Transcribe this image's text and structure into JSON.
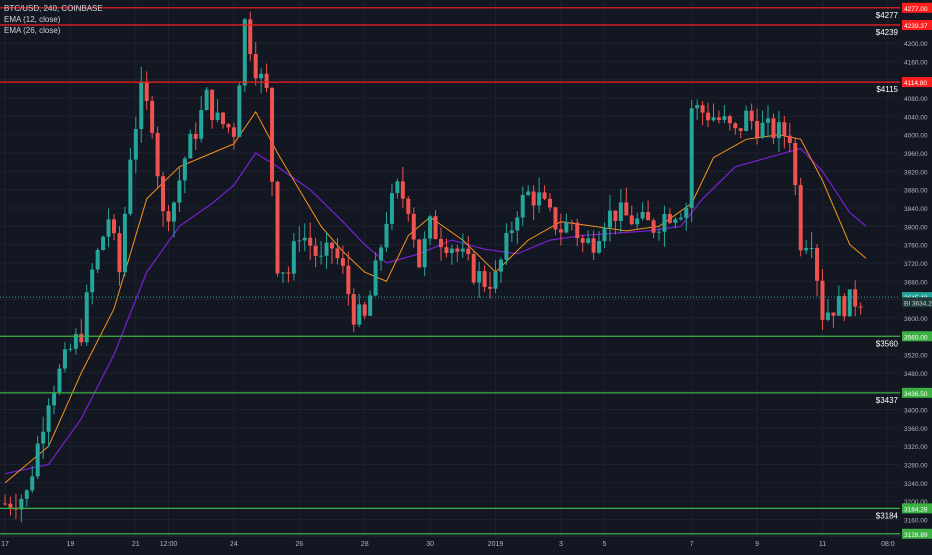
{
  "header": {
    "symbol_line": "BTC/USD, 240, COINBASE",
    "indicator_1": "EMA (12, close)",
    "indicator_2": "EMA (26, close)"
  },
  "colors": {
    "background": "#131722",
    "grid": "#1e2230",
    "up": "#26a69a",
    "down": "#ef5350",
    "ema_fast": "#f7931a",
    "ema_slow": "#7b1fd2",
    "resistance": "#ff1e1e",
    "support": "#3cb043",
    "axis_text": "#b2b5be",
    "price_label_bg": "#26a69a"
  },
  "chart_data": {
    "type": "candlestick",
    "title": "BTC/USD, 240, COINBASE",
    "ylim": [
      3124,
      4294
    ],
    "grid": true,
    "y_ticks": [
      3160,
      3200,
      3240,
      3280,
      3320,
      3360,
      3400,
      3440,
      3480,
      3520,
      3560,
      3600,
      3640,
      3680,
      3720,
      3760,
      3800,
      3840,
      3880,
      3920,
      3960,
      4000,
      4040,
      4080,
      4120,
      4160,
      4200
    ],
    "x_ticks": [
      {
        "label": "17",
        "index": 0
      },
      {
        "label": "19",
        "index": 12
      },
      {
        "label": "21",
        "index": 24
      },
      {
        "label": "12:00",
        "index": 30
      },
      {
        "label": "24",
        "index": 42
      },
      {
        "label": "26",
        "index": 54
      },
      {
        "label": "28",
        "index": 66
      },
      {
        "label": "30",
        "index": 78
      },
      {
        "label": "2019",
        "index": 90
      },
      {
        "label": "3",
        "index": 102
      },
      {
        "label": "5",
        "index": 110
      },
      {
        "label": "7",
        "index": 126
      },
      {
        "label": "9",
        "index": 138
      },
      {
        "label": "11",
        "index": 150
      },
      {
        "label": "08:0",
        "index": 162
      }
    ],
    "candle_count": 166,
    "resistance_levels": [
      {
        "value": 4277.0,
        "label": "4277.00",
        "side_label": "$4277"
      },
      {
        "value": 4239.37,
        "label": "4239.37",
        "side_label": "$4239"
      },
      {
        "value": 4114.8,
        "label": "4114.80",
        "side_label": "$4115"
      }
    ],
    "support_levels": [
      {
        "value": 3560.0,
        "label": "3560.00",
        "side_label": "$3560"
      },
      {
        "value": 3436.5,
        "label": "3436.50",
        "side_label": "$3437"
      },
      {
        "value": 3184.28,
        "label": "3184.28",
        "side_label": "$3184"
      },
      {
        "value": 3128.89,
        "label": "3128.89",
        "side_label": ""
      }
    ],
    "current_price": {
      "value": 3645.4,
      "label": "3645.40"
    },
    "second_price": {
      "value": 3634.22,
      "label": "BI 3634.22"
    },
    "waypoints": [
      [
        0,
        3195
      ],
      [
        4,
        3215
      ],
      [
        8,
        3430
      ],
      [
        12,
        3530
      ],
      [
        14,
        3570
      ],
      [
        16,
        3700
      ],
      [
        19,
        3820
      ],
      [
        21,
        3700
      ],
      [
        23,
        3960
      ],
      [
        25,
        4090
      ],
      [
        27,
        4030
      ],
      [
        29,
        3820
      ],
      [
        31,
        3855
      ],
      [
        33,
        3950
      ],
      [
        35,
        4010
      ],
      [
        37,
        4080
      ],
      [
        39,
        4030
      ],
      [
        42,
        4010
      ],
      [
        44,
        4245
      ],
      [
        46,
        4150
      ],
      [
        48,
        4090
      ],
      [
        50,
        3720
      ],
      [
        52,
        3700
      ],
      [
        54,
        3790
      ],
      [
        56,
        3760
      ],
      [
        58,
        3720
      ],
      [
        60,
        3755
      ],
      [
        62,
        3700
      ],
      [
        64,
        3610
      ],
      [
        66,
        3595
      ],
      [
        68,
        3700
      ],
      [
        70,
        3820
      ],
      [
        72,
        3880
      ],
      [
        74,
        3850
      ],
      [
        76,
        3720
      ],
      [
        78,
        3800
      ],
      [
        80,
        3775
      ],
      [
        82,
        3760
      ],
      [
        84,
        3730
      ],
      [
        86,
        3700
      ],
      [
        88,
        3680
      ],
      [
        90,
        3685
      ],
      [
        92,
        3760
      ],
      [
        94,
        3840
      ],
      [
        96,
        3870
      ],
      [
        98,
        3860
      ],
      [
        100,
        3820
      ],
      [
        102,
        3795
      ],
      [
        104,
        3810
      ],
      [
        106,
        3760
      ],
      [
        108,
        3770
      ],
      [
        110,
        3820
      ],
      [
        112,
        3830
      ],
      [
        114,
        3820
      ],
      [
        116,
        3810
      ],
      [
        119,
        3800
      ],
      [
        121,
        3825
      ],
      [
        123,
        3835
      ],
      [
        125,
        3845
      ],
      [
        126,
        4060
      ],
      [
        128,
        4050
      ],
      [
        130,
        4040
      ],
      [
        132,
        4025
      ],
      [
        134,
        4000
      ],
      [
        136,
        4040
      ],
      [
        138,
        4020
      ],
      [
        140,
        4010
      ],
      [
        142,
        4005
      ],
      [
        144,
        4000
      ],
      [
        146,
        3770
      ],
      [
        148,
        3780
      ],
      [
        150,
        3610
      ],
      [
        152,
        3625
      ],
      [
        154,
        3630
      ],
      [
        157,
        3645
      ]
    ],
    "ema12_points": [
      [
        0,
        3240
      ],
      [
        8,
        3320
      ],
      [
        14,
        3480
      ],
      [
        20,
        3620
      ],
      [
        26,
        3860
      ],
      [
        32,
        3930
      ],
      [
        38,
        3960
      ],
      [
        42,
        3980
      ],
      [
        46,
        4050
      ],
      [
        50,
        3960
      ],
      [
        54,
        3880
      ],
      [
        58,
        3800
      ],
      [
        62,
        3745
      ],
      [
        66,
        3700
      ],
      [
        70,
        3680
      ],
      [
        74,
        3780
      ],
      [
        78,
        3820
      ],
      [
        84,
        3770
      ],
      [
        90,
        3700
      ],
      [
        96,
        3770
      ],
      [
        102,
        3810
      ],
      [
        108,
        3800
      ],
      [
        114,
        3790
      ],
      [
        120,
        3800
      ],
      [
        126,
        3850
      ],
      [
        130,
        3950
      ],
      [
        136,
        3990
      ],
      [
        142,
        4000
      ],
      [
        146,
        3990
      ],
      [
        150,
        3900
      ],
      [
        155,
        3760
      ],
      [
        158,
        3730
      ]
    ],
    "ema26_points": [
      [
        0,
        3260
      ],
      [
        8,
        3280
      ],
      [
        14,
        3380
      ],
      [
        20,
        3520
      ],
      [
        26,
        3700
      ],
      [
        32,
        3800
      ],
      [
        38,
        3850
      ],
      [
        42,
        3890
      ],
      [
        46,
        3960
      ],
      [
        50,
        3930
      ],
      [
        56,
        3880
      ],
      [
        62,
        3810
      ],
      [
        66,
        3760
      ],
      [
        70,
        3720
      ],
      [
        76,
        3740
      ],
      [
        82,
        3770
      ],
      [
        88,
        3750
      ],
      [
        94,
        3740
      ],
      [
        100,
        3770
      ],
      [
        106,
        3780
      ],
      [
        112,
        3785
      ],
      [
        118,
        3790
      ],
      [
        124,
        3800
      ],
      [
        128,
        3860
      ],
      [
        134,
        3930
      ],
      [
        140,
        3950
      ],
      [
        146,
        3970
      ],
      [
        150,
        3920
      ],
      [
        155,
        3830
      ],
      [
        158,
        3800
      ]
    ]
  }
}
